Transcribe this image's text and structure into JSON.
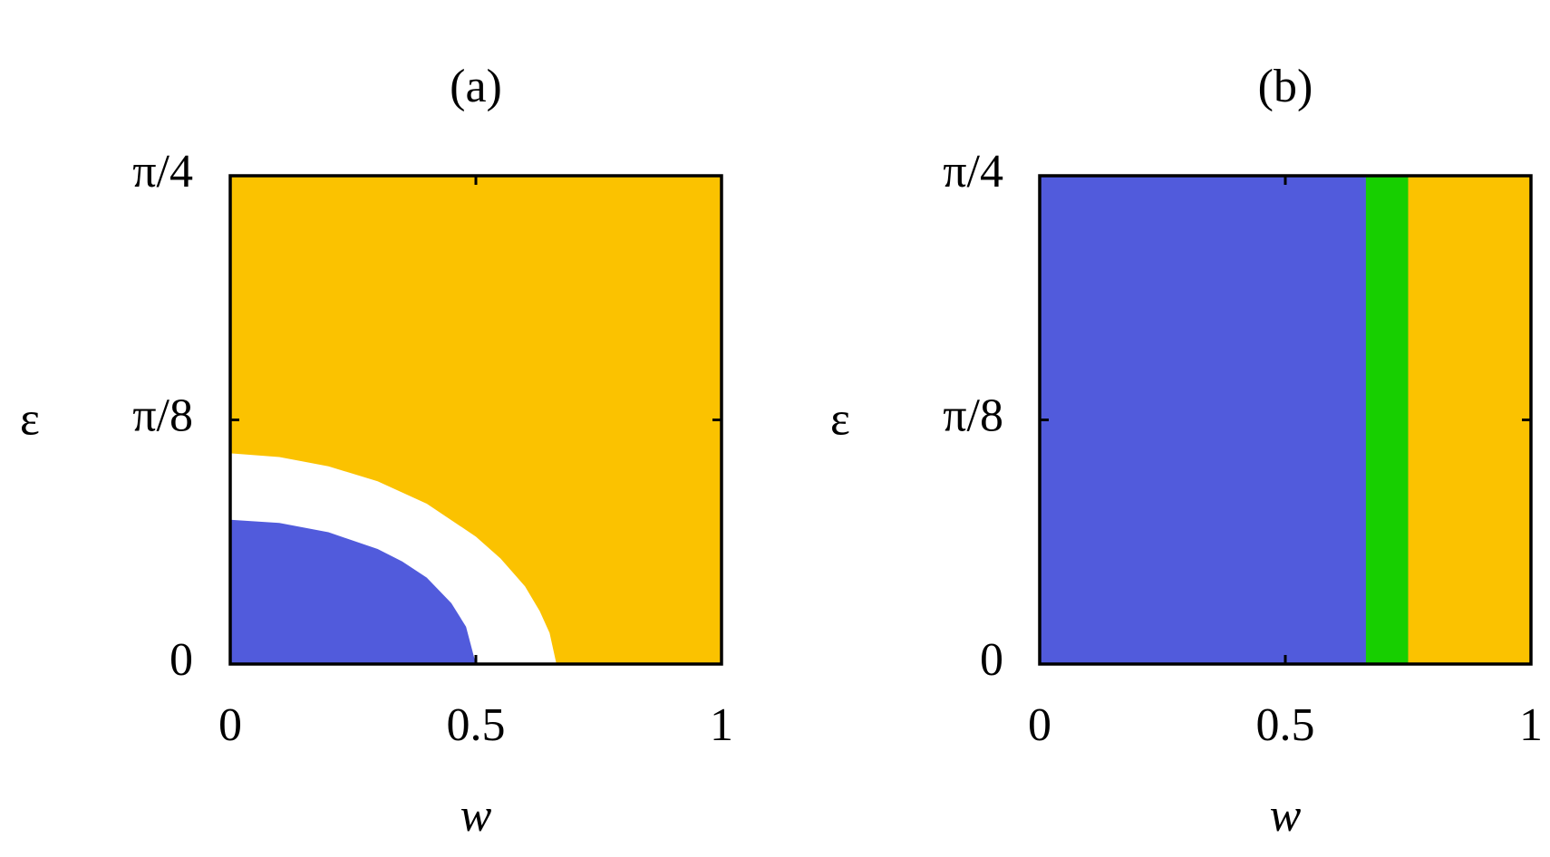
{
  "chart_data": [
    {
      "type": "area",
      "title": "(a)",
      "xlabel": "w",
      "ylabel": "ε",
      "xlim": [
        0,
        1
      ],
      "ylim": [
        0,
        0.7854
      ],
      "xticks": [
        0,
        0.5,
        1
      ],
      "yticks": [
        0,
        {
          "value": 0.3927,
          "label": "π/8"
        },
        {
          "value": 0.7854,
          "label": "π/4"
        }
      ],
      "series": [
        {
          "color": "#fbc200",
          "x": [
            0,
            1
          ],
          "y": [
            0.7854,
            0.7854
          ]
        },
        {
          "color": "#ffffff",
          "x": [
            0,
            0.1,
            0.2,
            0.3,
            0.4,
            0.5,
            0.55,
            0.6,
            0.63,
            0.65,
            0.664
          ],
          "y": [
            0.339,
            0.333,
            0.318,
            0.294,
            0.258,
            0.205,
            0.17,
            0.125,
            0.085,
            0.05,
            0
          ]
        },
        {
          "color": "#515bdc",
          "x": [
            0,
            0.1,
            0.2,
            0.3,
            0.35,
            0.4,
            0.45,
            0.48,
            0.5
          ],
          "y": [
            0.232,
            0.227,
            0.212,
            0.185,
            0.165,
            0.139,
            0.098,
            0.06,
            0
          ]
        }
      ]
    },
    {
      "type": "area",
      "title": "(b)",
      "xlabel": "w",
      "ylabel": "ε",
      "xlim": [
        0,
        1
      ],
      "ylim": [
        0,
        0.7854
      ],
      "xticks": [
        0,
        0.5,
        1
      ],
      "yticks": [
        0,
        {
          "value": 0.3927,
          "label": "π/8"
        },
        {
          "value": 0.7854,
          "label": "π/4"
        }
      ],
      "series": [
        {
          "color": "#fbc200",
          "x": [
            0,
            1
          ],
          "y": [
            0.7854,
            0.7854
          ]
        },
        {
          "color": "#17cf00",
          "x": [
            0,
            0.75
          ],
          "y": [
            0.7854,
            0.7854
          ]
        },
        {
          "color": "#515bdc",
          "x": [
            0,
            0.664
          ],
          "y": [
            0.7854,
            0.7854
          ]
        }
      ]
    }
  ]
}
